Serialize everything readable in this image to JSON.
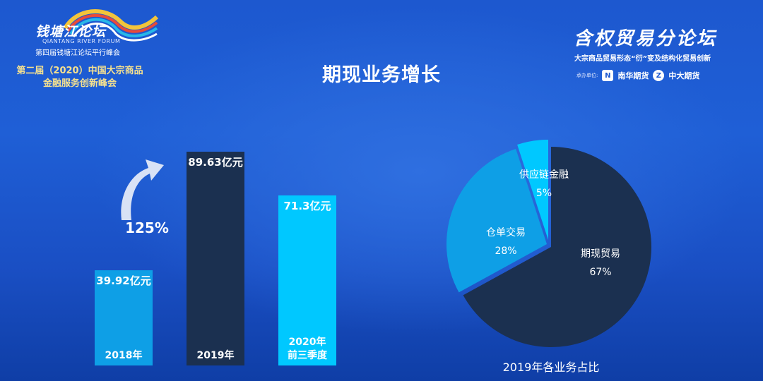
{
  "header": {
    "forum_logo_text": "钱塘江论坛",
    "forum_en": "QIANTANG RIVER FORUM",
    "forum_sub": "第四届钱塘江论坛平行峰会",
    "summit_line1": "第二届（2020）中国大宗商品",
    "summit_line2": "金融服务创新峰会",
    "sub_forum_title": "含权贸易分论坛",
    "sub_forum_slogan": "大宗商品贸易形态“衍”变及结构化贸易创新",
    "sponsor_label": "承办单位:",
    "sponsor1": "南华期货",
    "sponsor2": "中大期货"
  },
  "page_title": "期现业务增长",
  "colors": {
    "bar_2018": "#0e9fe6",
    "bar_2019": "#1b3050",
    "bar_2020": "#00c8ff",
    "pie_main": "#1b3050",
    "pie_2": "#0e9fe6",
    "pie_3": "#00c8ff",
    "arrow": "#e8eef8"
  },
  "chart_data": [
    {
      "type": "bar",
      "categories": [
        "2018年",
        "2019年",
        "2020年\n前三季度"
      ],
      "values": [
        39.92,
        89.63,
        71.3
      ],
      "value_labels": [
        "39.92亿元",
        "89.63亿元",
        "71.3亿元"
      ],
      "unit": "亿元",
      "growth_annotation": "125%",
      "ylim": [
        0,
        89.63
      ]
    },
    {
      "type": "pie",
      "title": "2019年各业务占比",
      "slices": [
        {
          "name": "期现贸易",
          "value": 67,
          "label": "67%"
        },
        {
          "name": "仓单交易",
          "value": 28,
          "label": "28%"
        },
        {
          "name": "供应链金融",
          "value": 5,
          "label": "5%"
        }
      ]
    }
  ]
}
